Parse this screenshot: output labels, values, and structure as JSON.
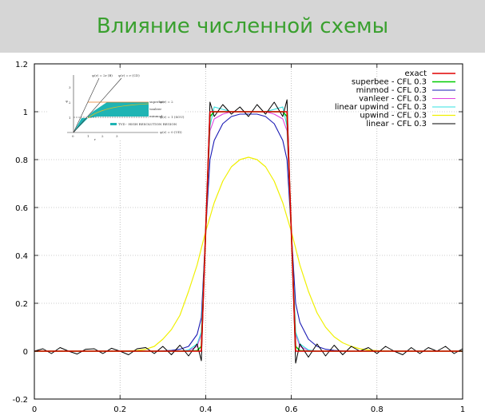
{
  "slide": {
    "title": "Влияние численной схемы",
    "title_color": "#3aa02f"
  },
  "chart_data": {
    "type": "line",
    "xlim": [
      0,
      1
    ],
    "ylim": [
      -0.2,
      1.2
    ],
    "xticks": [
      0,
      0.2,
      0.4,
      0.6,
      0.8,
      1
    ],
    "xtick_labels": [
      "0",
      "0.2",
      "0.4",
      "0.6",
      "0.8",
      "1"
    ],
    "yticks": [
      -0.2,
      0,
      0.2,
      0.4,
      0.6,
      0.8,
      1,
      1.2
    ],
    "ytick_labels": [
      "-0.2",
      "0",
      "0.2",
      "0.4",
      "0.6",
      "0.8",
      "1",
      "1.2"
    ],
    "grid": true,
    "legend_position": "top-right",
    "x": [
      0.0,
      0.02,
      0.04,
      0.06,
      0.08,
      0.1,
      0.12,
      0.14,
      0.16,
      0.18,
      0.2,
      0.22,
      0.24,
      0.26,
      0.28,
      0.3,
      0.32,
      0.34,
      0.36,
      0.38,
      0.39,
      0.4,
      0.41,
      0.42,
      0.44,
      0.46,
      0.48,
      0.5,
      0.52,
      0.54,
      0.56,
      0.58,
      0.59,
      0.6,
      0.61,
      0.62,
      0.64,
      0.66,
      0.68,
      0.7,
      0.72,
      0.74,
      0.76,
      0.78,
      0.8,
      0.82,
      0.84,
      0.86,
      0.88,
      0.9,
      0.92,
      0.94,
      0.96,
      0.98,
      1.0
    ],
    "series": [
      {
        "name": "exact",
        "color": "#e00000",
        "width": 1.6,
        "values": [
          0,
          0,
          0,
          0,
          0,
          0,
          0,
          0,
          0,
          0,
          0,
          0,
          0,
          0,
          0,
          0,
          0,
          0,
          0,
          0,
          0,
          0.5,
          1,
          1,
          1,
          1,
          1,
          1,
          1,
          1,
          1,
          1,
          1,
          0.5,
          0,
          0,
          0,
          0,
          0,
          0,
          0,
          0,
          0,
          0,
          0,
          0,
          0,
          0,
          0,
          0,
          0,
          0,
          0,
          0,
          0
        ]
      },
      {
        "name": "superbee - CFL 0.3",
        "color": "#00cc00",
        "width": 1.6,
        "values": [
          0,
          0,
          0,
          0,
          0,
          0,
          0,
          0,
          0,
          0,
          0,
          0,
          0,
          0,
          0,
          0,
          0,
          0,
          0,
          0.002,
          0.02,
          0.5,
          0.98,
          1.0,
          1.0,
          1.0,
          1.0,
          1.0,
          1.0,
          1.0,
          1.0,
          1.0,
          0.98,
          0.5,
          0.02,
          0.002,
          0,
          0,
          0,
          0,
          0,
          0,
          0,
          0,
          0,
          0,
          0,
          0,
          0,
          0,
          0,
          0,
          0,
          0,
          0
        ]
      },
      {
        "name": "minmod - CFL 0.3",
        "color": "#1a1ab4",
        "width": 1.1,
        "values": [
          0,
          0,
          0,
          0,
          0,
          0,
          0,
          0,
          0,
          0,
          0,
          0,
          0,
          0,
          0,
          0.001,
          0.003,
          0.008,
          0.02,
          0.07,
          0.14,
          0.5,
          0.8,
          0.88,
          0.95,
          0.98,
          0.99,
          0.99,
          0.99,
          0.98,
          0.95,
          0.88,
          0.8,
          0.5,
          0.2,
          0.12,
          0.05,
          0.02,
          0.008,
          0.003,
          0.001,
          0,
          0,
          0,
          0,
          0,
          0,
          0,
          0,
          0,
          0,
          0,
          0,
          0,
          0
        ]
      },
      {
        "name": "vanleer - CFL 0.3",
        "color": "#e040e0",
        "width": 1.1,
        "values": [
          0,
          0,
          0,
          0,
          0,
          0,
          0,
          0,
          0,
          0,
          0,
          0,
          0,
          0,
          0,
          0,
          0,
          0,
          0.002,
          0.02,
          0.07,
          0.5,
          0.92,
          0.97,
          0.99,
          1.0,
          1.0,
          1.0,
          1.0,
          1.0,
          0.99,
          0.97,
          0.92,
          0.5,
          0.07,
          0.02,
          0.003,
          0,
          0,
          0,
          0,
          0,
          0,
          0,
          0,
          0,
          0,
          0,
          0,
          0,
          0,
          0,
          0,
          0,
          0
        ]
      },
      {
        "name": "linear upwind - CFL 0.3",
        "color": "#30e0e0",
        "width": 1.1,
        "values": [
          0,
          0,
          0,
          0,
          0,
          0,
          0,
          0,
          0,
          0,
          0,
          0,
          0,
          0,
          0,
          0,
          0,
          0,
          0.005,
          0.03,
          0.08,
          0.5,
          0.94,
          1.02,
          1.01,
          1.0,
          1.0,
          1.0,
          1.0,
          1.0,
          1.01,
          1.02,
          0.94,
          0.5,
          0.08,
          0.03,
          0.005,
          0,
          0,
          0,
          0,
          0,
          0,
          0,
          0,
          0,
          0,
          0,
          0,
          0,
          0,
          0,
          0,
          0,
          0
        ]
      },
      {
        "name": "upwind - CFL 0.3",
        "color": "#f0f000",
        "width": 1.2,
        "values": [
          0,
          0,
          0,
          0,
          0,
          0,
          0,
          0,
          0,
          0,
          0,
          0.001,
          0.003,
          0.008,
          0.02,
          0.05,
          0.09,
          0.15,
          0.25,
          0.36,
          0.43,
          0.5,
          0.56,
          0.62,
          0.71,
          0.77,
          0.8,
          0.81,
          0.8,
          0.77,
          0.71,
          0.62,
          0.56,
          0.5,
          0.43,
          0.36,
          0.25,
          0.16,
          0.1,
          0.06,
          0.035,
          0.02,
          0.01,
          0.005,
          0.002,
          0.001,
          0,
          0,
          0,
          0,
          0,
          0,
          0,
          0,
          0
        ]
      },
      {
        "name": "linear - CFL 0.3",
        "color": "#000000",
        "width": 1.0,
        "values": [
          0,
          0.01,
          -0.01,
          0.015,
          0,
          -0.012,
          0.008,
          0.01,
          -0.01,
          0.012,
          0,
          -0.015,
          0.01,
          0.015,
          -0.01,
          0.02,
          -0.015,
          0.025,
          -0.02,
          0.03,
          -0.04,
          0.5,
          1.04,
          0.98,
          1.03,
          0.99,
          1.02,
          0.98,
          1.03,
          0.99,
          1.04,
          0.98,
          1.05,
          0.5,
          -0.05,
          0.03,
          -0.025,
          0.03,
          -0.02,
          0.025,
          -0.015,
          0.02,
          0,
          0.015,
          -0.01,
          0.02,
          0,
          -0.015,
          0.015,
          -0.01,
          0.015,
          0,
          0.02,
          -0.01,
          0.01
        ]
      }
    ]
  },
  "inset": {
    "y_label": "ψ",
    "x_label": "r",
    "ticks_x": [
      "0",
      "1",
      "2",
      "3"
    ],
    "ticks_y": [
      "1",
      "2",
      "3"
    ],
    "line_labels": [
      "ψ(r) = 2r (B)",
      "ψ(r) = r (CD)",
      "ψ(r) = 2",
      "ψ(r) = 1 (SOU)",
      "ψ(r) = 0 (UD)"
    ],
    "bound_labels": [
      "superbee",
      "vanleer",
      "minmod"
    ],
    "legend_label": "TVD - HIGH RESOLUTION REGION",
    "region_color": "#1fb4b4",
    "accent_color": "#e07820"
  }
}
